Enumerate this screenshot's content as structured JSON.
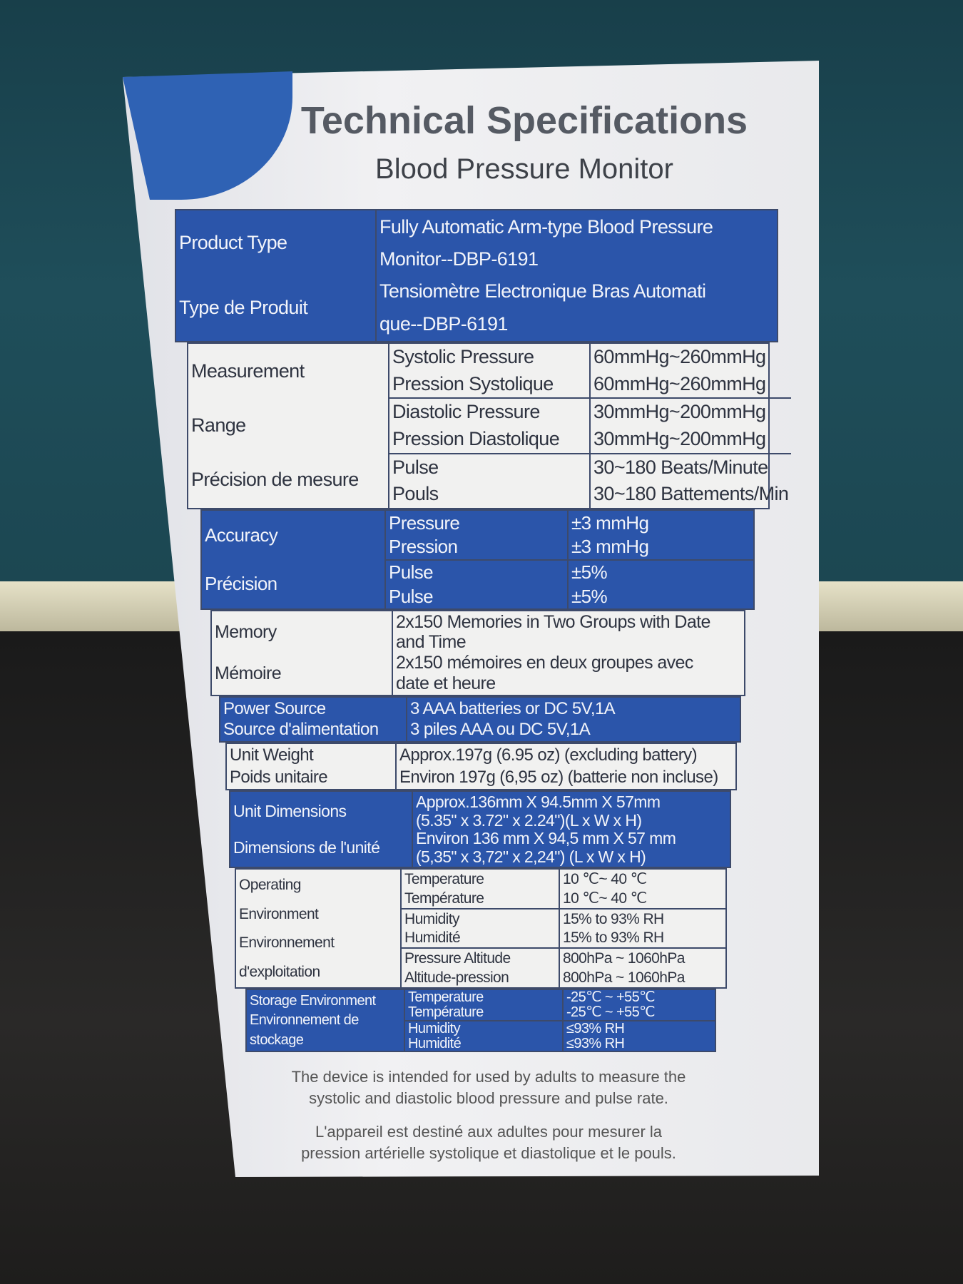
{
  "header": {
    "title": "Technical Specifications",
    "subtitle": "Blood Pressure Monitor"
  },
  "colors": {
    "blue": "#2b55aa",
    "panel": "#f1f1f0",
    "background_top": "#1f4e5a"
  },
  "rows": [
    {
      "id": "product-type",
      "style": "blue",
      "labels": [
        "Product Type",
        "Type de Produit"
      ],
      "values": [
        "Fully Automatic Arm-type Blood Pressure",
        "Monitor--DBP-6191",
        "Tensiomètre Electronique Bras Automati",
        "que--DBP-6191"
      ]
    },
    {
      "id": "measurement-range",
      "style": "white",
      "labels": [
        "Measurement",
        "Range",
        "Précision de mesure"
      ],
      "subs": [
        {
          "names": [
            "Systolic Pressure",
            "Pression Systolique"
          ],
          "values": [
            "60mmHg~260mmHg",
            "60mmHg~260mmHg"
          ]
        },
        {
          "names": [
            "Diastolic Pressure",
            "Pression Diastolique"
          ],
          "values": [
            "30mmHg~200mmHg",
            "30mmHg~200mmHg"
          ]
        },
        {
          "names": [
            "Pulse",
            "Pouls"
          ],
          "values": [
            "30~180 Beats/Minute",
            "30~180 Battements/Min"
          ]
        }
      ]
    },
    {
      "id": "accuracy",
      "style": "blue",
      "labels": [
        "Accuracy",
        "Précision"
      ],
      "subs": [
        {
          "names": [
            "Pressure",
            "Pression"
          ],
          "values": [
            "±3 mmHg",
            "±3 mmHg"
          ]
        },
        {
          "names": [
            "Pulse",
            "Pulse"
          ],
          "values": [
            "±5%",
            "±5%"
          ]
        }
      ]
    },
    {
      "id": "memory",
      "style": "white",
      "labels": [
        "Memory",
        "Mémoire"
      ],
      "values": [
        "2x150 Memories in Two Groups with Date",
        "and Time",
        "2x150 mémoires en deux groupes avec",
        "date et heure"
      ]
    },
    {
      "id": "power-source",
      "style": "blue",
      "labels": [
        "Power Source",
        "Source d'alimentation"
      ],
      "values": [
        "3 AAA batteries or DC 5V,1A",
        "3 piles AAA ou DC 5V,1A"
      ]
    },
    {
      "id": "unit-weight",
      "style": "white",
      "labels": [
        "Unit Weight",
        "Poids unitaire"
      ],
      "values": [
        "Approx.197g (6.95 oz) (excluding battery)",
        "Environ 197g (6,95 oz) (batterie non incluse)"
      ]
    },
    {
      "id": "unit-dimensions",
      "style": "blue",
      "labels": [
        "Unit Dimensions",
        "Dimensions de l'unité"
      ],
      "values": [
        "Approx.136mm X 94.5mm X 57mm",
        "(5.35\" x 3.72\" x 2.24\")(L x W x H)",
        "Environ 136 mm X 94,5 mm X 57 mm",
        "(5,35\" x 3,72\" x 2,24\") (L x W x H)"
      ]
    },
    {
      "id": "operating-environment",
      "style": "white",
      "labels": [
        "Operating",
        "Environment",
        "Environnement",
        "d'exploitation"
      ],
      "subs": [
        {
          "names": [
            "Temperature",
            "Température"
          ],
          "values": [
            "10 ℃~ 40 ℃",
            "10 ℃~ 40 ℃"
          ]
        },
        {
          "names": [
            "Humidity",
            "Humidité"
          ],
          "values": [
            "15% to 93% RH",
            "15% to 93% RH"
          ]
        },
        {
          "names": [
            "Pressure Altitude",
            "Altitude-pression"
          ],
          "values": [
            "800hPa ~ 1060hPa",
            "800hPa ~ 1060hPa"
          ]
        }
      ]
    },
    {
      "id": "storage-environment",
      "style": "blue",
      "labels": [
        "Storage Environment",
        "Environnement de",
        "stockage"
      ],
      "subs": [
        {
          "names": [
            "Temperature",
            "Température"
          ],
          "values": [
            "-25℃ ~ +55℃",
            "-25℃ ~ +55℃"
          ]
        },
        {
          "names": [
            "Humidity",
            "Humidité"
          ],
          "values": [
            "≤93% RH",
            "≤93% RH"
          ]
        }
      ]
    }
  ],
  "notes": {
    "en": [
      "The device is intended for used by adults to measure the",
      "systolic and diastolic blood pressure and pulse rate."
    ],
    "fr": [
      "L'appareil est destiné aux adultes pour mesurer la",
      "pression artérielle systolique et diastolique et le pouls."
    ]
  }
}
